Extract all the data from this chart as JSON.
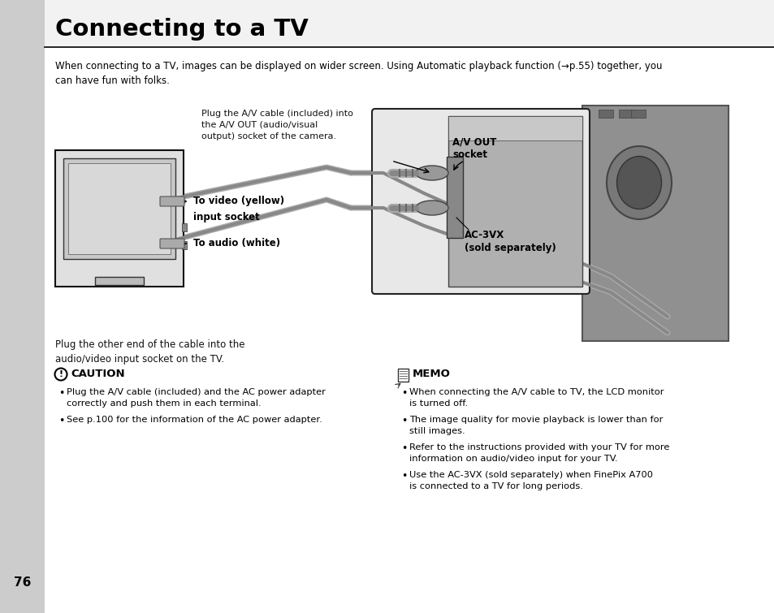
{
  "title": "Connecting to a TV",
  "page_number": "76",
  "bg_color": "#ffffff",
  "sidebar_color": "#cccccc",
  "intro_text": "When connecting to a TV, images can be displayed on wider screen. Using Automatic playback function (→p.55) together, you\ncan have fun with folks.",
  "diagram_annotation_top": "Plug the A/V cable (included) into\nthe A/V OUT (audio/visual\noutput) socket of the camera.",
  "label_av_out": "A/V OUT\nsocket",
  "label_ac3vx": "AC-3VX\n(sold separately)",
  "label_video": "To video (yellow)",
  "label_input": "input socket",
  "label_audio": "To audio (white)",
  "diagram_bottom_text": "Plug the other end of the cable into the\naudio/video input socket on the TV.",
  "caution_title": "CAUTION",
  "caution_bullets": [
    "Plug the A/V cable (included) and the AC power adapter\ncorrectly and push them in each terminal.",
    "See p.100 for the information of the AC power adapter."
  ],
  "memo_title": "MEMO",
  "memo_bullets": [
    "When connecting the A/V cable to TV, the LCD monitor\nis turned off.",
    "The image quality for movie playback is lower than for\nstill images.",
    "Refer to the instructions provided with your TV for more\ninformation on audio/video input for your TV.",
    "Use the AC-3VX (sold separately) when FinePix A700\nis connected to a TV for long periods."
  ]
}
